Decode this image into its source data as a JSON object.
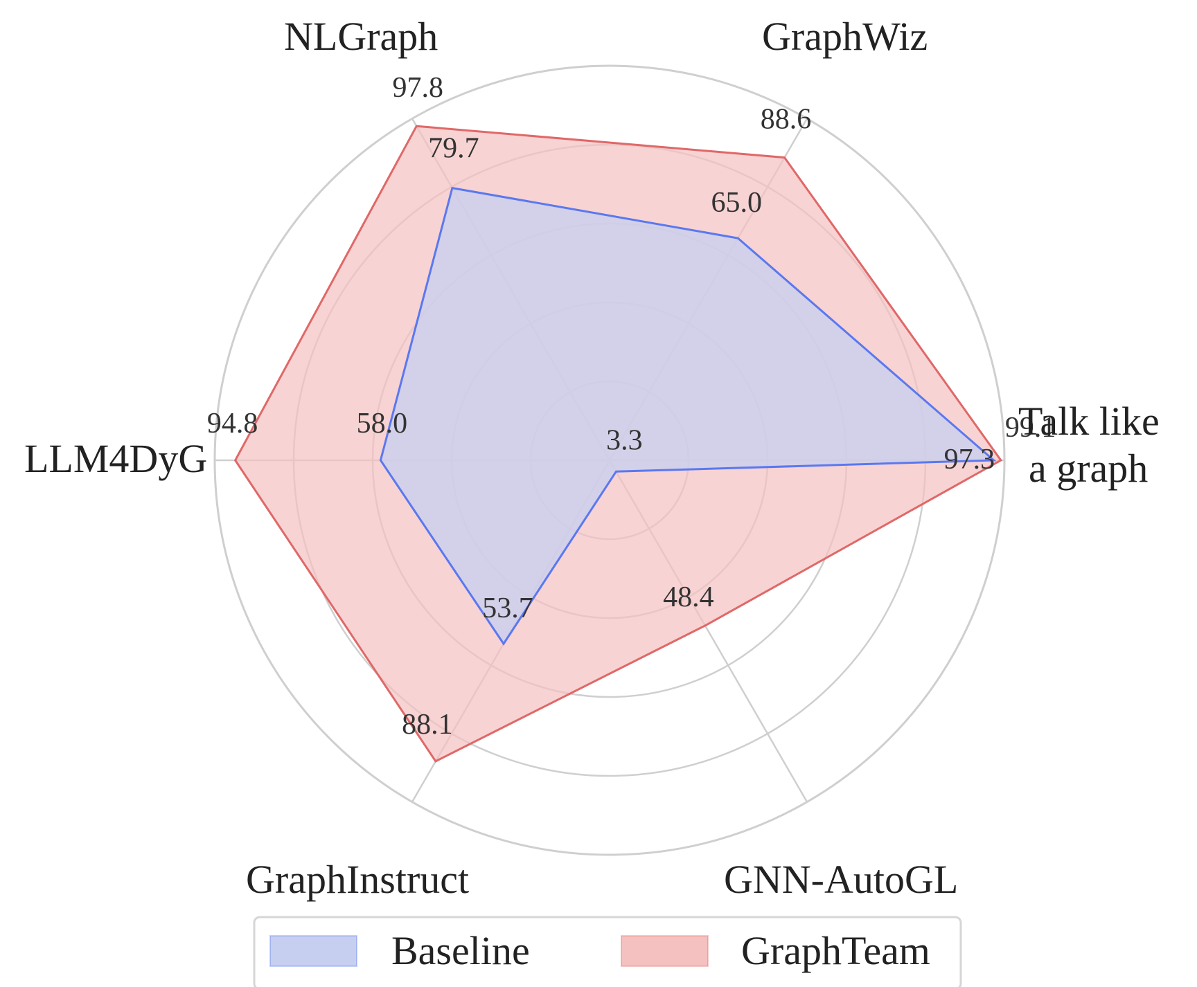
{
  "chart_data": {
    "type": "radar",
    "axes": [
      "Talk like a graph",
      "GraphWiz",
      "NLGraph",
      "LLM4DyG",
      "GraphInstruct",
      "GNN-AutoGL"
    ],
    "axis_label_lines": [
      [
        "Talk like",
        "a graph"
      ],
      [
        "GraphWiz"
      ],
      [
        "NLGraph"
      ],
      [
        "LLM4DyG"
      ],
      [
        "GraphInstruct"
      ],
      [
        "GNN-AutoGL"
      ]
    ],
    "rlim": [
      0,
      100
    ],
    "grid": true,
    "series": [
      {
        "name": "Baseline",
        "values": [
          97.3,
          65.0,
          79.7,
          58.0,
          53.7,
          3.3
        ],
        "value_labels": [
          "97.3",
          "65.0",
          "79.7",
          "58.0",
          "53.7",
          "3.3"
        ],
        "fill_color": "#c7cff0",
        "line_color": "#5a78f0"
      },
      {
        "name": "GraphTeam",
        "values": [
          99.1,
          88.6,
          97.8,
          94.8,
          88.1,
          48.4
        ],
        "value_labels": [
          "99.1",
          "88.6",
          "97.8",
          "94.8",
          "88.1",
          "48.4"
        ],
        "fill_color": "#f5c0c0",
        "line_color": "#e06868"
      }
    ],
    "legend": {
      "placement": "bottom",
      "entries": [
        "Baseline",
        "GraphTeam"
      ]
    }
  }
}
